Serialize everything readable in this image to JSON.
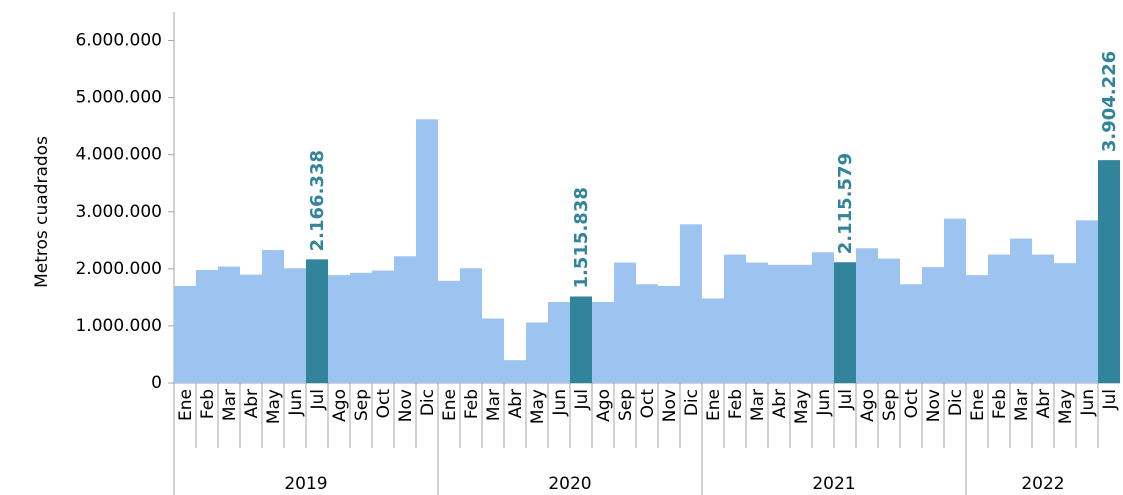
{
  "chart_data": {
    "type": "bar",
    "ylabel": "Metros cuadrados",
    "ylim": [
      0,
      6500000
    ],
    "yticks": [
      0,
      {
        "value": 1000000,
        "label": "1.000.000"
      },
      {
        "value": 2000000,
        "label": "2.000.000"
      },
      {
        "value": 3000000,
        "label": "3.000.000"
      },
      {
        "value": 4000000,
        "label": "4.000.000"
      },
      {
        "value": 5000000,
        "label": "5.000.000"
      },
      {
        "value": 6000000,
        "label": "6.000.000"
      }
    ],
    "groups": [
      {
        "name": "2019",
        "categories": [
          "Ene",
          "Feb",
          "Mar",
          "Abr",
          "May",
          "Jun",
          "Jul",
          "Ago",
          "Sep",
          "Oct",
          "Nov",
          "Dic"
        ],
        "values": [
          1700000,
          1980000,
          2040000,
          1900000,
          2330000,
          2010000,
          2166338,
          1890000,
          1930000,
          1970000,
          2220000,
          4620000
        ],
        "value_labels": [
          null,
          null,
          null,
          null,
          null,
          null,
          "2.166.338",
          null,
          null,
          null,
          null,
          null
        ],
        "colors": [
          "#9dc3f0",
          "#9dc3f0",
          "#9dc3f0",
          "#9dc3f0",
          "#9dc3f0",
          "#9dc3f0",
          "#31849b",
          "#9dc3f0",
          "#9dc3f0",
          "#9dc3f0",
          "#9dc3f0",
          "#9dc3f0"
        ]
      },
      {
        "name": "2020",
        "categories": [
          "Ene",
          "Feb",
          "Mar",
          "Abr",
          "May",
          "Jun",
          "Jul",
          "Ago",
          "Sep",
          "Oct",
          "Nov",
          "Dic"
        ],
        "values": [
          1790000,
          2010000,
          1130000,
          400000,
          1060000,
          1420000,
          1515838,
          1420000,
          2110000,
          1730000,
          1700000,
          2780000
        ],
        "value_labels": [
          null,
          null,
          null,
          null,
          null,
          null,
          "1.515.838",
          null,
          null,
          null,
          null,
          null
        ],
        "colors": [
          "#9dc3f0",
          "#9dc3f0",
          "#9dc3f0",
          "#9dc3f0",
          "#9dc3f0",
          "#9dc3f0",
          "#31849b",
          "#9dc3f0",
          "#9dc3f0",
          "#9dc3f0",
          "#9dc3f0",
          "#9dc3f0"
        ]
      },
      {
        "name": "2021",
        "categories": [
          "Ene",
          "Feb",
          "Mar",
          "Abr",
          "May",
          "Jun",
          "Jul",
          "Ago",
          "Sep",
          "Oct",
          "Nov",
          "Dic"
        ],
        "values": [
          1480000,
          2250000,
          2110000,
          2070000,
          2070000,
          2290000,
          2115579,
          2360000,
          2180000,
          1730000,
          2030000,
          2880000
        ],
        "value_labels": [
          null,
          null,
          null,
          null,
          null,
          null,
          "2.115.579",
          null,
          null,
          null,
          null,
          null
        ],
        "colors": [
          "#9dc3f0",
          "#9dc3f0",
          "#9dc3f0",
          "#9dc3f0",
          "#9dc3f0",
          "#9dc3f0",
          "#31849b",
          "#9dc3f0",
          "#9dc3f0",
          "#9dc3f0",
          "#9dc3f0",
          "#9dc3f0"
        ]
      },
      {
        "name": "2022",
        "categories": [
          "Ene",
          "Feb",
          "Mar",
          "Abr",
          "May",
          "Jun",
          "Jul"
        ],
        "values": [
          1890000,
          2250000,
          2530000,
          2250000,
          2100000,
          2850000,
          3904226
        ],
        "value_labels": [
          null,
          null,
          null,
          null,
          null,
          null,
          "3.904.226"
        ],
        "colors": [
          "#9dc3f0",
          "#9dc3f0",
          "#9dc3f0",
          "#9dc3f0",
          "#9dc3f0",
          "#9dc3f0",
          "#31849b"
        ]
      }
    ]
  }
}
